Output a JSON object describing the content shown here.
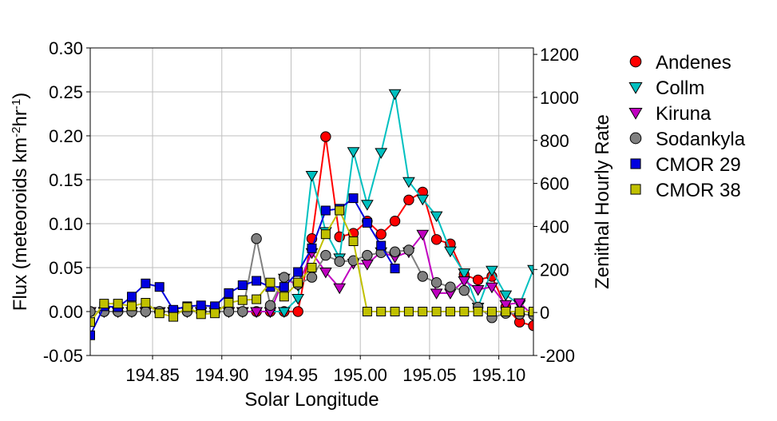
{
  "chart_data": {
    "type": "line",
    "title": "",
    "xlabel": "Solar Longitude",
    "ylabel_left_parts": [
      "Flux (meteoroids km",
      "-2",
      "hr",
      "-1",
      ")"
    ],
    "ylabel_right": "Zenithal Hourly Rate",
    "xlim": [
      194.805,
      195.125
    ],
    "ylim_left": [
      -0.05,
      0.3
    ],
    "ylim_right": [
      -200,
      1230
    ],
    "x_ticks": [
      194.85,
      194.9,
      194.95,
      195.0,
      195.05,
      195.1
    ],
    "x_tick_labels": [
      "194.85",
      "194.90",
      "194.95",
      "195.00",
      "195.05",
      "195.10"
    ],
    "y_left_ticks": [
      -0.05,
      0.0,
      0.05,
      0.1,
      0.15,
      0.2,
      0.25,
      0.3
    ],
    "y_left_tick_labels": [
      "-0.05",
      "0.00",
      "0.05",
      "0.10",
      "0.15",
      "0.20",
      "0.25",
      "0.30"
    ],
    "y_right_ticks": [
      -200,
      0,
      200,
      400,
      600,
      800,
      1000,
      1200
    ],
    "y_right_tick_labels": [
      "-200",
      "0",
      "200",
      "400",
      "600",
      "800",
      "1000",
      "1200"
    ],
    "grid": true,
    "legend_position": "right",
    "series": [
      {
        "name": "Andenes",
        "color": "#ff0000",
        "marker": "circle",
        "x": [
          194.805,
          194.815,
          194.825,
          194.835,
          194.845,
          194.855,
          194.865,
          194.875,
          194.885,
          194.895,
          194.905,
          194.915,
          194.925,
          194.935,
          194.945,
          194.955,
          194.965,
          194.975,
          194.985,
          194.995,
          195.005,
          195.015,
          195.025,
          195.035,
          195.045,
          195.055,
          195.065,
          195.075,
          195.085,
          195.095,
          195.105,
          195.115,
          195.125
        ],
        "y": [
          0.0,
          0.0,
          0.0,
          0.0,
          0.0,
          0.0,
          0.0,
          0.0,
          0.0,
          0.0,
          0.0,
          0.0,
          0.0,
          0.0,
          0.0,
          0.0,
          0.083,
          0.199,
          0.085,
          0.089,
          0.103,
          0.088,
          0.103,
          0.127,
          0.136,
          0.082,
          0.077,
          0.042,
          0.036,
          0.04,
          0.005,
          -0.012,
          -0.016
        ]
      },
      {
        "name": "Collm",
        "color": "#00c0c0",
        "marker": "triangle-down",
        "x": [
          194.805,
          194.815,
          194.825,
          194.835,
          194.845,
          194.855,
          194.865,
          194.875,
          194.885,
          194.895,
          194.905,
          194.915,
          194.925,
          194.935,
          194.945,
          194.955,
          194.965,
          194.975,
          194.985,
          194.995,
          195.005,
          195.015,
          195.025,
          195.035,
          195.045,
          195.055,
          195.065,
          195.075,
          195.085,
          195.095,
          195.105,
          195.115,
          195.125
        ],
        "y": [
          0.0,
          0.0,
          0.0,
          0.0,
          0.0,
          0.0,
          0.0,
          0.0,
          0.0,
          0.0,
          0.0,
          0.0,
          0.0,
          0.0,
          0.0,
          0.015,
          0.155,
          0.091,
          0.061,
          0.182,
          0.122,
          0.181,
          0.248,
          0.148,
          0.128,
          0.109,
          0.069,
          0.044,
          0.005,
          0.047,
          0.019,
          0.008,
          0.048
        ]
      },
      {
        "name": "Kiruna",
        "color": "#c000c0",
        "marker": "triangle-down",
        "x": [
          194.805,
          194.815,
          194.825,
          194.835,
          194.845,
          194.855,
          194.865,
          194.875,
          194.885,
          194.895,
          194.905,
          194.915,
          194.925,
          194.935,
          194.945,
          194.955,
          194.965,
          194.975,
          194.985,
          194.995,
          195.005,
          195.015,
          195.025,
          195.035,
          195.045,
          195.055,
          195.065,
          195.075,
          195.085,
          195.095,
          195.105,
          195.115,
          195.125
        ],
        "y": [
          0.0,
          0.0,
          0.0,
          0.0,
          0.0,
          0.0,
          0.0,
          0.0,
          0.0,
          0.0,
          0.0,
          0.0,
          0.0,
          0.0,
          0.038,
          0.03,
          0.067,
          0.045,
          0.027,
          0.055,
          0.054,
          0.068,
          0.062,
          0.068,
          0.088,
          0.021,
          0.021,
          0.035,
          0.025,
          0.028,
          0.008,
          0.01,
          -0.005
        ]
      },
      {
        "name": "Sodankyla",
        "color": "#808080",
        "marker": "circle",
        "x": [
          194.805,
          194.815,
          194.825,
          194.835,
          194.845,
          194.855,
          194.865,
          194.875,
          194.885,
          194.895,
          194.905,
          194.915,
          194.925,
          194.935,
          194.945,
          194.955,
          194.965,
          194.975,
          194.985,
          194.995,
          195.005,
          195.015,
          195.025,
          195.035,
          195.045,
          195.055,
          195.065,
          195.075,
          195.085,
          195.095,
          195.105,
          195.115,
          195.125
        ],
        "y": [
          0.0,
          0.0,
          0.0,
          0.0,
          0.0,
          0.0,
          0.0,
          0.0,
          0.0,
          0.0,
          0.0,
          0.0,
          0.083,
          0.007,
          0.039,
          0.031,
          0.039,
          0.064,
          0.057,
          0.058,
          0.064,
          0.067,
          0.068,
          0.07,
          0.04,
          0.033,
          0.028,
          0.024,
          0.005,
          -0.007,
          -0.002,
          -0.003,
          -0.004
        ]
      },
      {
        "name": "CMOR 29",
        "color": "#0000e0",
        "marker": "square",
        "x": [
          194.805,
          194.815,
          194.825,
          194.835,
          194.845,
          194.855,
          194.865,
          194.875,
          194.885,
          194.895,
          194.905,
          194.915,
          194.925,
          194.935,
          194.945,
          194.955,
          194.965,
          194.975,
          194.985,
          194.995,
          195.005,
          195.015,
          195.025
        ],
        "y": [
          -0.027,
          0.006,
          0.005,
          0.017,
          0.032,
          0.028,
          0.002,
          0.006,
          0.007,
          0.006,
          0.021,
          0.03,
          0.035,
          0.028,
          0.028,
          0.045,
          0.072,
          0.115,
          0.117,
          0.129,
          0.101,
          0.075,
          0.049
        ]
      },
      {
        "name": "CMOR 38",
        "color": "#c0c000",
        "marker": "square",
        "x": [
          194.805,
          194.815,
          194.825,
          194.835,
          194.845,
          194.855,
          194.865,
          194.875,
          194.885,
          194.895,
          194.905,
          194.915,
          194.925,
          194.935,
          194.945,
          194.955,
          194.965,
          194.975,
          194.985,
          194.995,
          195.005,
          195.015,
          195.025,
          195.035,
          195.045,
          195.055,
          195.065,
          195.075,
          195.085,
          195.095,
          195.105,
          195.115,
          195.125
        ],
        "y": [
          -0.012,
          0.009,
          0.009,
          0.006,
          0.01,
          -0.002,
          -0.006,
          0.005,
          -0.003,
          -0.002,
          0.01,
          0.013,
          0.014,
          0.033,
          0.017,
          0.033,
          0.05,
          0.088,
          0.115,
          0.08,
          0.0,
          0.0,
          0.0,
          0.0,
          0.0,
          0.0,
          0.0,
          0.0,
          0.0,
          0.0,
          0.0,
          0.0,
          0.0
        ]
      }
    ]
  }
}
